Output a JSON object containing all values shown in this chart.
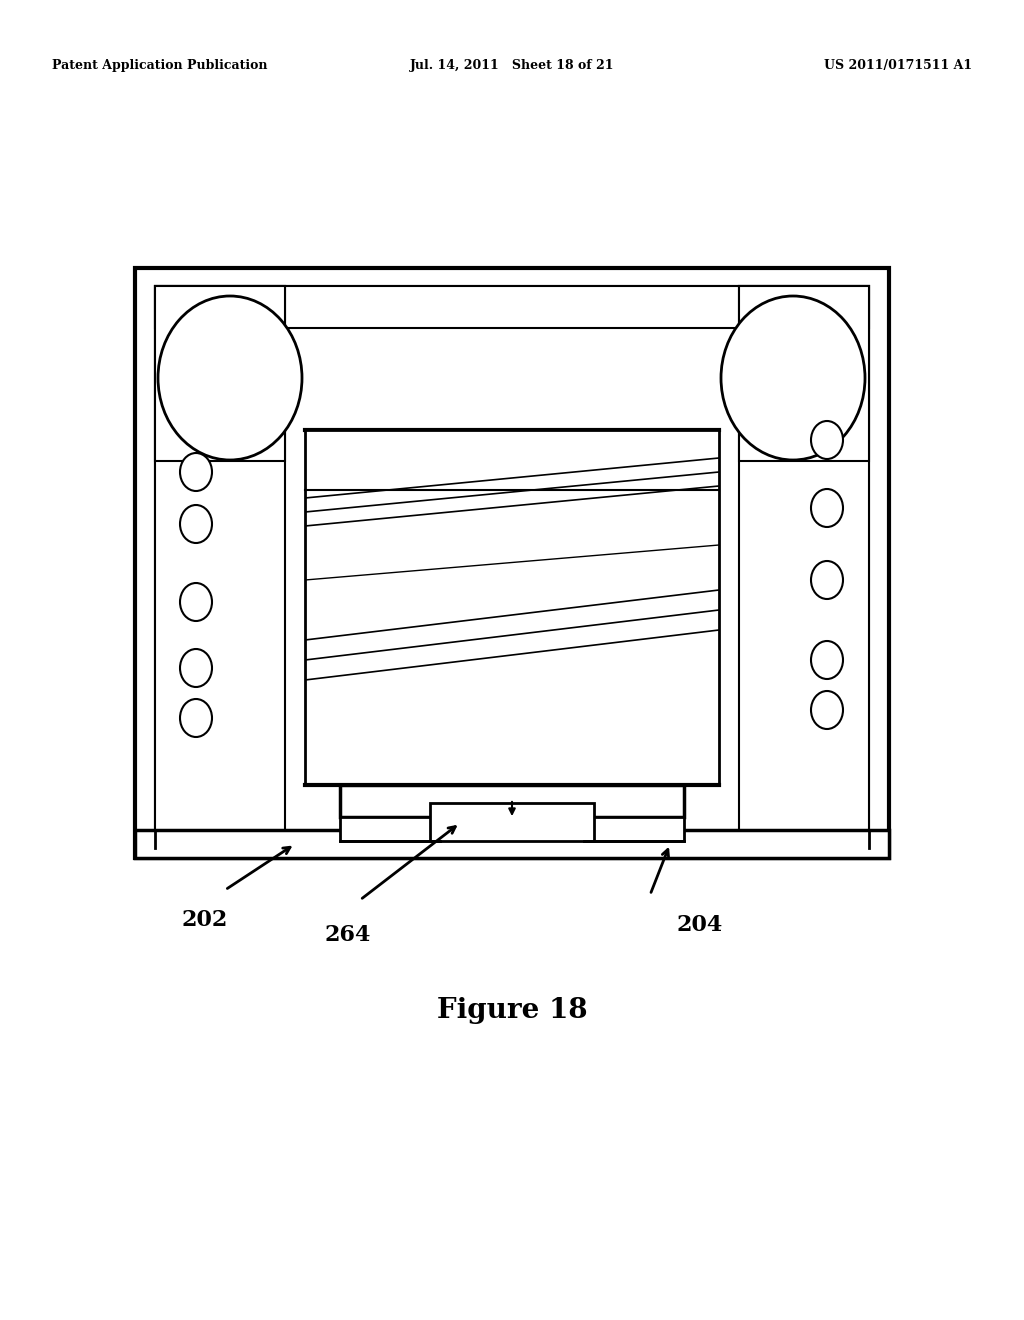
{
  "bg_color": "#ffffff",
  "line_color": "#000000",
  "header_left": "Patent Application Publication",
  "header_mid": "Jul. 14, 2011   Sheet 18 of 21",
  "header_right": "US 2011/0171511 A1",
  "figure_label": "Figure 18",
  "label_202": "202",
  "label_264": "264",
  "label_204": "204"
}
